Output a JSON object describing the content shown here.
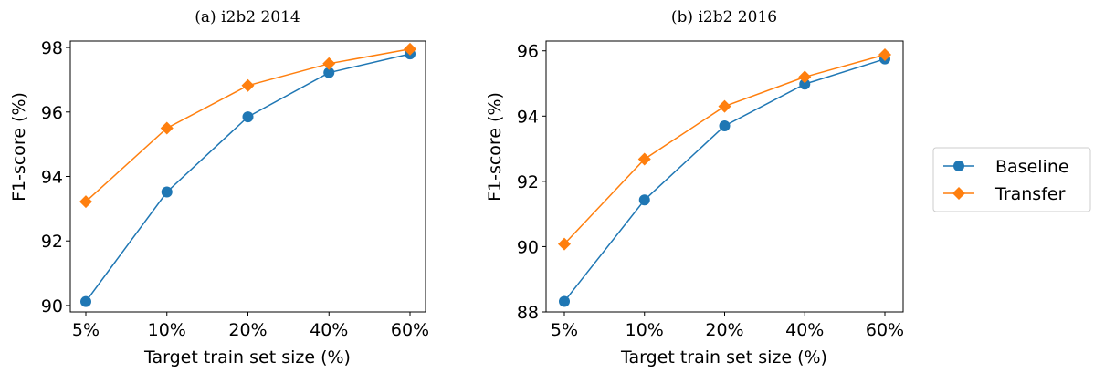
{
  "colors": {
    "baseline": "#1f77b4",
    "transfer": "#ff7f0e"
  },
  "legend": {
    "placement": "right",
    "entries": [
      {
        "label": "Baseline",
        "marker": "circle",
        "color": "#1f77b4"
      },
      {
        "label": "Transfer",
        "marker": "diamond",
        "color": "#ff7f0e"
      }
    ]
  },
  "chart_data": [
    {
      "type": "line",
      "title": "(a) i2b2 2014",
      "xlabel": "Target train set size (%)",
      "ylabel": "F1-score (%)",
      "categories": [
        "5%",
        "10%",
        "20%",
        "40%",
        "60%"
      ],
      "ylim": [
        89.8,
        98.2
      ],
      "yticks": [
        90,
        92,
        94,
        96,
        98
      ],
      "grid": false,
      "series": [
        {
          "name": "Baseline",
          "values": [
            90.12,
            93.52,
            95.85,
            97.22,
            97.8
          ]
        },
        {
          "name": "Transfer",
          "values": [
            93.22,
            95.5,
            96.82,
            97.5,
            97.95
          ]
        }
      ]
    },
    {
      "type": "line",
      "title": "(b) i2b2 2016",
      "xlabel": "Target train set size (%)",
      "ylabel": "F1-score (%)",
      "categories": [
        "5%",
        "10%",
        "20%",
        "40%",
        "60%"
      ],
      "ylim": [
        88.0,
        96.3
      ],
      "yticks": [
        88,
        90,
        92,
        94,
        96
      ],
      "grid": false,
      "series": [
        {
          "name": "Baseline",
          "values": [
            88.32,
            91.43,
            93.7,
            94.98,
            95.75
          ]
        },
        {
          "name": "Transfer",
          "values": [
            90.08,
            92.68,
            94.3,
            95.2,
            95.88
          ]
        }
      ]
    }
  ]
}
